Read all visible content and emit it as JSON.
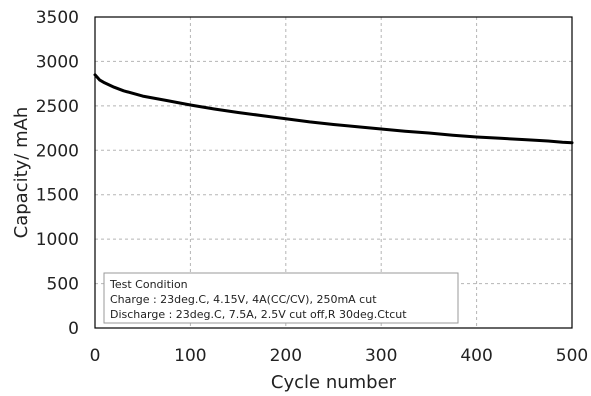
{
  "chart_data": {
    "type": "line",
    "title": "",
    "xlabel": "Cycle number",
    "ylabel": "Capacity/ mAh",
    "xlim": [
      0,
      500
    ],
    "ylim": [
      0,
      3500
    ],
    "xticks": [
      0,
      100,
      200,
      300,
      400,
      500
    ],
    "yticks": [
      0,
      500,
      1000,
      1500,
      2000,
      2500,
      3000,
      3500
    ],
    "grid": true,
    "line_color": "#000000",
    "series": [
      {
        "x": [
          0,
          5,
          10,
          20,
          30,
          50,
          75,
          100,
          125,
          150,
          175,
          200,
          225,
          250,
          275,
          300,
          325,
          350,
          375,
          400,
          425,
          450,
          475,
          490,
          500
        ],
        "y": [
          2850,
          2790,
          2760,
          2710,
          2670,
          2610,
          2560,
          2510,
          2465,
          2425,
          2390,
          2355,
          2320,
          2290,
          2265,
          2240,
          2215,
          2195,
          2170,
          2150,
          2135,
          2120,
          2105,
          2090,
          2085
        ]
      }
    ],
    "annotation": {
      "lines": [
        "Test Condition",
        "Charge : 23deg.C, 4.15V, 4A(CC/CV), 250mA cut",
        "Discharge : 23deg.C, 7.5A, 2.5V cut off,R 30deg.Ctcut"
      ]
    }
  }
}
